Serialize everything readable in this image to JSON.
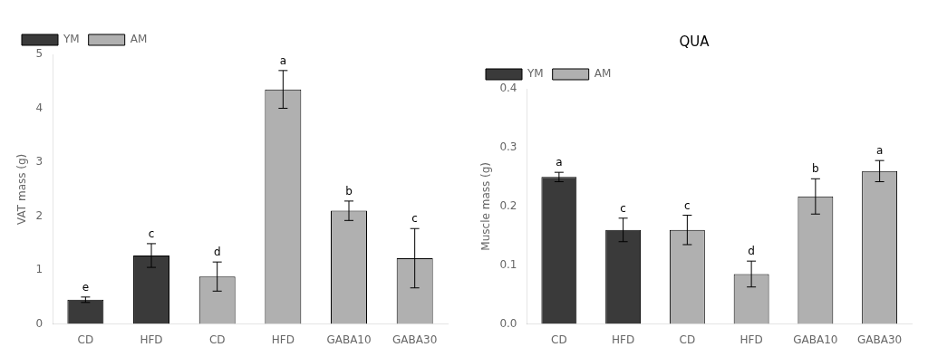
{
  "chart_data": [
    {
      "type": "bar",
      "ylabel": "VAT mass (g)",
      "categories": [
        "CD",
        "HFD",
        "CD",
        "HFD",
        "GABA10",
        "GABA30"
      ],
      "series": [
        {
          "name": "YM",
          "color": "#3a3a3a",
          "values": [
            0.45,
            1.27,
            null,
            null,
            null,
            null
          ],
          "errors": [
            0.05,
            0.22,
            null,
            null,
            null,
            null
          ],
          "letters": [
            "e",
            "c",
            null,
            null,
            null,
            null
          ]
        },
        {
          "name": "AM",
          "color": "#b0b0b0",
          "values": [
            null,
            null,
            0.88,
            4.35,
            2.1,
            1.22
          ],
          "errors": [
            null,
            null,
            0.27,
            0.35,
            0.18,
            0.55
          ],
          "letters": [
            null,
            null,
            "d",
            "a",
            "b",
            "c"
          ]
        }
      ],
      "ylim": [
        0,
        5
      ],
      "yticks": [
        0,
        1,
        2,
        3,
        4,
        5
      ],
      "grid": false,
      "legend": "upper left"
    },
    {
      "type": "bar",
      "title": "QUA",
      "ylabel": "Muscle mass (g)",
      "categories": [
        "CD",
        "HFD",
        "CD",
        "HFD",
        "GABA10",
        "GABA30"
      ],
      "series": [
        {
          "name": "YM",
          "color": "#3a3a3a",
          "values": [
            0.25,
            0.16,
            null,
            null,
            null,
            null
          ],
          "errors": [
            0.008,
            0.02,
            null,
            null,
            null,
            null
          ],
          "letters": [
            "a",
            "c",
            null,
            null,
            null,
            null
          ]
        },
        {
          "name": "AM",
          "color": "#b0b0b0",
          "values": [
            null,
            null,
            0.16,
            0.085,
            0.217,
            0.26
          ],
          "errors": [
            null,
            null,
            0.025,
            0.022,
            0.03,
            0.018
          ],
          "letters": [
            null,
            null,
            "c",
            "d",
            "b",
            "a"
          ]
        }
      ],
      "ylim": [
        0,
        0.4
      ],
      "yticks": [
        {
          "value": 0.0,
          "label": "0.0"
        },
        0.1,
        0.2,
        0.3,
        0.4
      ],
      "grid": false,
      "legend": "upper left"
    }
  ]
}
